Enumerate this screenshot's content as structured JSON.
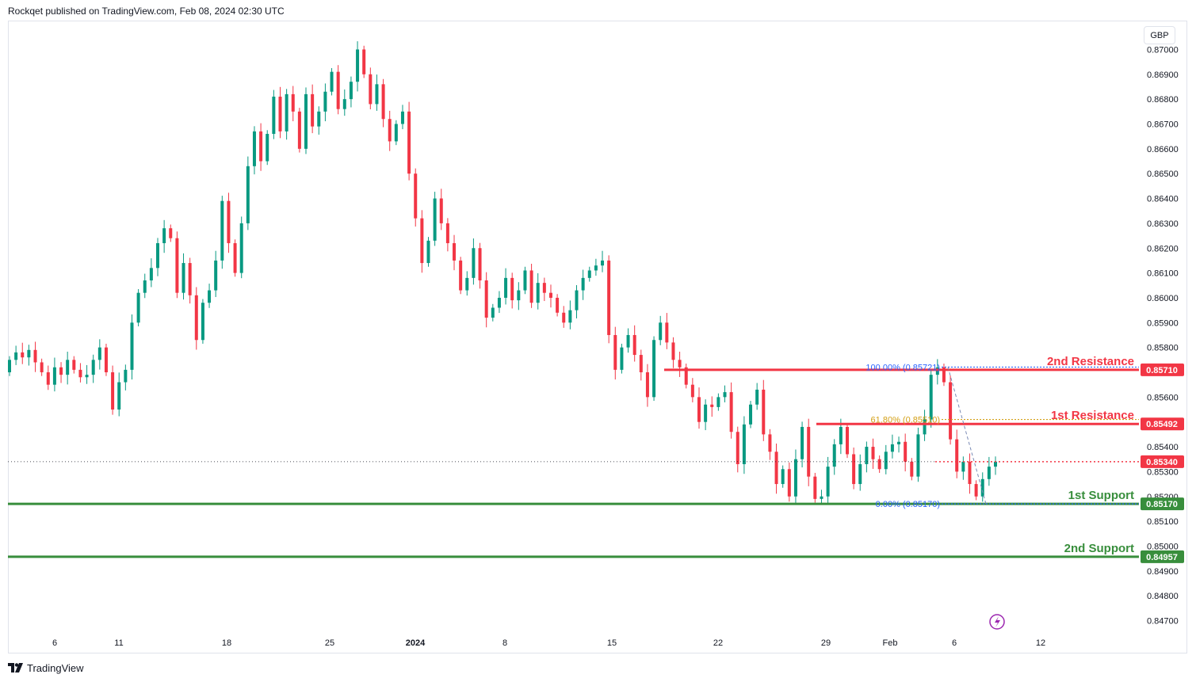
{
  "header": {
    "published_by": "Rockqet published on TradingView.com, Feb 08, 2024 02:30 UTC"
  },
  "currency_button": "GBP",
  "footer": {
    "brand": "TradingView"
  },
  "colors": {
    "up": "#089981",
    "down": "#f23645",
    "resistance": "#f23645",
    "support": "#388e3c",
    "fib_top": "#2962ff",
    "fib_mid": "#d4a017",
    "grid": "#ffffff"
  },
  "chart_data": {
    "type": "candlestick",
    "symbol_currency": "GBP",
    "ylim": [
      0.8464,
      0.8711
    ],
    "y_ticks": [
      "0.84700",
      "0.84800",
      "0.84900",
      "0.85000",
      "0.85100",
      "0.85200",
      "0.85300",
      "0.85400",
      "0.85500",
      "0.85600",
      "0.85700",
      "0.85800",
      "0.85900",
      "0.86000",
      "0.86100",
      "0.86200",
      "0.86300",
      "0.86400",
      "0.86500",
      "0.86600",
      "0.86700",
      "0.86800",
      "0.86900",
      "0.87000"
    ],
    "x_ticks": [
      {
        "label": "6",
        "bold": false
      },
      {
        "label": "11",
        "bold": false
      },
      {
        "label": "18",
        "bold": false
      },
      {
        "label": "25",
        "bold": false
      },
      {
        "label": "2024",
        "bold": true
      },
      {
        "label": "8",
        "bold": false
      },
      {
        "label": "15",
        "bold": false
      },
      {
        "label": "22",
        "bold": false
      },
      {
        "label": "29",
        "bold": false
      },
      {
        "label": "Feb",
        "bold": false
      },
      {
        "label": "6",
        "bold": false
      },
      {
        "label": "12",
        "bold": false
      }
    ],
    "closes": [
      0.8575,
      0.8578,
      0.8576,
      0.8579,
      0.8574,
      0.857,
      0.8565,
      0.8572,
      0.8569,
      0.8575,
      0.8571,
      0.8568,
      0.8569,
      0.8575,
      0.858,
      0.857,
      0.8555,
      0.8566,
      0.8571,
      0.859,
      0.8602,
      0.8607,
      0.8612,
      0.8622,
      0.8628,
      0.8624,
      0.8602,
      0.8614,
      0.8601,
      0.8583,
      0.8598,
      0.8603,
      0.8615,
      0.8639,
      0.8622,
      0.861,
      0.863,
      0.8653,
      0.8667,
      0.8655,
      0.8666,
      0.8681,
      0.8667,
      0.8682,
      0.8675,
      0.866,
      0.8682,
      0.8669,
      0.8675,
      0.8683,
      0.8691,
      0.8676,
      0.868,
      0.8687,
      0.87,
      0.869,
      0.8678,
      0.8686,
      0.8672,
      0.8663,
      0.867,
      0.8675,
      0.865,
      0.8632,
      0.8614,
      0.8623,
      0.864,
      0.863,
      0.8622,
      0.8615,
      0.8603,
      0.8608,
      0.862,
      0.8607,
      0.8592,
      0.8596,
      0.86,
      0.8608,
      0.8599,
      0.8603,
      0.8611,
      0.8598,
      0.8606,
      0.8602,
      0.86,
      0.8594,
      0.859,
      0.8595,
      0.8603,
      0.8608,
      0.8611,
      0.8613,
      0.8615,
      0.8585,
      0.8571,
      0.858,
      0.8585,
      0.8577,
      0.857,
      0.856,
      0.8583,
      0.859,
      0.8582,
      0.8575,
      0.8572,
      0.8565,
      0.856,
      0.855,
      0.8557,
      0.8556,
      0.856,
      0.8562,
      0.8546,
      0.8533,
      0.8549,
      0.8557,
      0.8563,
      0.8545,
      0.8538,
      0.8525,
      0.8531,
      0.852,
      0.8535,
      0.8548,
      0.8528,
      0.8519,
      0.852,
      0.8532,
      0.8541,
      0.8548,
      0.8537,
      0.8525,
      0.8533,
      0.854,
      0.8535,
      0.8531,
      0.8538,
      0.8541,
      0.8542,
      0.8534,
      0.8528,
      0.8545,
      0.8551,
      0.8569,
      0.8572,
      0.8566,
      0.8543,
      0.853,
      0.8534,
      0.8525,
      0.852,
      0.8527,
      0.8532,
      0.8534
    ],
    "levels": [
      {
        "name": "2nd Resistance",
        "price": "0.85710",
        "kind": "resistance"
      },
      {
        "name": "1st Resistance",
        "price": "0.85492",
        "kind": "resistance"
      },
      {
        "name": "1st Support",
        "price": "0.85170",
        "kind": "support"
      },
      {
        "name": "2nd Support",
        "price": "0.84957",
        "kind": "support"
      }
    ],
    "current_price": "0.85340",
    "fibonacci": [
      {
        "label": "100.00% (0.85721)",
        "value": 0.85721
      },
      {
        "label": "61.80% (0.85510)",
        "value": 0.8551
      },
      {
        "label": "0.00% (0.85170)",
        "value": 0.8517
      }
    ]
  }
}
